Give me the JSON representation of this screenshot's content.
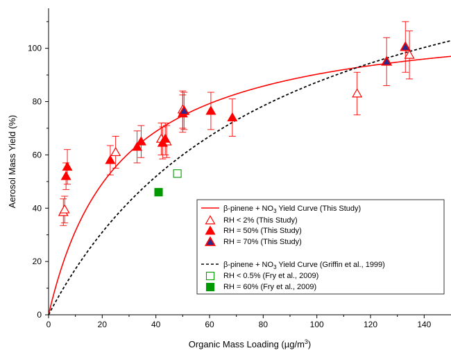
{
  "chart_data": {
    "type": "scatter",
    "xlabel": {
      "pre": "Organic Mass Loading (µg/m",
      "sup": "3",
      "post": ")"
    },
    "ylabel": "Aerosol Mass Yield (%)",
    "xlim": [
      0,
      150
    ],
    "ylim": [
      0,
      115
    ],
    "x_ticks": [
      0,
      20,
      40,
      60,
      80,
      100,
      120,
      140
    ],
    "y_ticks": [
      0,
      20,
      40,
      60,
      80,
      100
    ],
    "grid": false,
    "legend_position": "lower-right",
    "curves": [
      {
        "legend": {
          "pre": "β-pinene + NO",
          "sub": "3",
          "post": " Yield Curve (This Study)"
        },
        "color": "#ff0000",
        "style": "solid",
        "model": "two-product",
        "params": {
          "a": 1.14,
          "K": 0.038
        }
      },
      {
        "legend": {
          "pre": "β-pinene + NO",
          "sub": "3",
          "post": " Yield Curve (Griffin et al., 1999)"
        },
        "color": "#000000",
        "style": "dashed",
        "model": "two-product",
        "params": {
          "a": 1.6,
          "K": 0.012
        }
      }
    ],
    "series": [
      {
        "legend": "RH < 2% (This Study)",
        "marker": "triangle-open",
        "color": "#ff0000",
        "points": [
          {
            "x": 5.5,
            "y": 38.5,
            "err": 5
          },
          {
            "x": 6.0,
            "y": 39.5,
            "err": 5
          },
          {
            "x": 25,
            "y": 61,
            "err": 6
          },
          {
            "x": 42,
            "y": 66,
            "err": 6
          },
          {
            "x": 44,
            "y": 65,
            "err": 6
          },
          {
            "x": 50,
            "y": 77,
            "err": 7
          },
          {
            "x": 115,
            "y": 83,
            "err": 8
          },
          {
            "x": 134.5,
            "y": 97.5,
            "err": 9
          }
        ]
      },
      {
        "legend": "RH = 50% (This Study)",
        "marker": "triangle-filled",
        "color": "#ff0000",
        "points": [
          {
            "x": 6.5,
            "y": 52,
            "err": 5
          },
          {
            "x": 7.0,
            "y": 55.5,
            "err": 6.5
          },
          {
            "x": 23,
            "y": 58,
            "err": 5.5
          },
          {
            "x": 33,
            "y": 63,
            "err": 6
          },
          {
            "x": 34.5,
            "y": 65,
            "err": 6
          },
          {
            "x": 42.5,
            "y": 64.5,
            "err": 6
          },
          {
            "x": 43.5,
            "y": 66,
            "err": 6
          },
          {
            "x": 50,
            "y": 75.5,
            "err": 7
          },
          {
            "x": 60.5,
            "y": 76.5,
            "err": 7
          },
          {
            "x": 68.5,
            "y": 74,
            "err": 7
          }
        ]
      },
      {
        "legend": "RH = 70% (This Study)",
        "marker": "triangle-navy",
        "color": "#ff0000",
        "points": [
          {
            "x": 50.5,
            "y": 76.5,
            "err": 7
          },
          {
            "x": 126,
            "y": 95,
            "err": 9
          },
          {
            "x": 133,
            "y": 100.5,
            "err": 9.5
          }
        ]
      },
      {
        "legend": "RH < 0.5% (Fry et al., 2009)",
        "marker": "square-open",
        "color": "#009900",
        "points": [
          {
            "x": 48,
            "y": 53
          }
        ]
      },
      {
        "legend": "RH = 60% (Fry et al., 2009)",
        "marker": "square-filled",
        "color": "#009900",
        "points": [
          {
            "x": 41,
            "y": 46
          }
        ]
      }
    ],
    "colors": {
      "fill_navy": "#2b2a8c",
      "axis": "#000000"
    }
  }
}
